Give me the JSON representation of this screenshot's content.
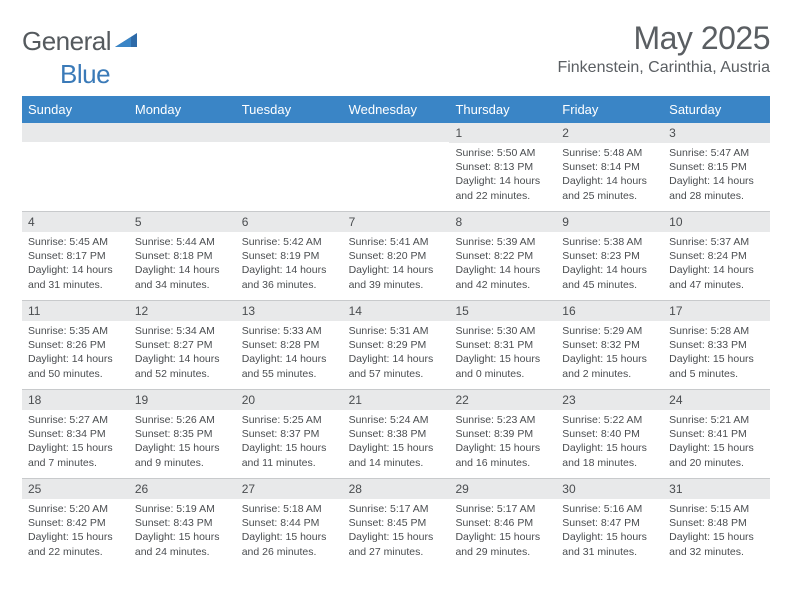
{
  "logo": {
    "part1": "General",
    "part2": "Blue"
  },
  "title": "May 2025",
  "location": "Finkenstein, Carinthia, Austria",
  "weekdays": [
    "Sunday",
    "Monday",
    "Tuesday",
    "Wednesday",
    "Thursday",
    "Friday",
    "Saturday"
  ],
  "colors": {
    "header_bg": "#3a85c6",
    "daynum_bg": "#e8e9ea",
    "text": "#4a4d50",
    "logo_gray": "#555a5e",
    "logo_blue": "#3a7ab8",
    "divider": "#c8cacc"
  },
  "weeks": [
    [
      {
        "n": "",
        "sunrise": "",
        "sunset": "",
        "daylight1": "",
        "daylight2": ""
      },
      {
        "n": "",
        "sunrise": "",
        "sunset": "",
        "daylight1": "",
        "daylight2": ""
      },
      {
        "n": "",
        "sunrise": "",
        "sunset": "",
        "daylight1": "",
        "daylight2": ""
      },
      {
        "n": "",
        "sunrise": "",
        "sunset": "",
        "daylight1": "",
        "daylight2": ""
      },
      {
        "n": "1",
        "sunrise": "Sunrise: 5:50 AM",
        "sunset": "Sunset: 8:13 PM",
        "daylight1": "Daylight: 14 hours",
        "daylight2": "and 22 minutes."
      },
      {
        "n": "2",
        "sunrise": "Sunrise: 5:48 AM",
        "sunset": "Sunset: 8:14 PM",
        "daylight1": "Daylight: 14 hours",
        "daylight2": "and 25 minutes."
      },
      {
        "n": "3",
        "sunrise": "Sunrise: 5:47 AM",
        "sunset": "Sunset: 8:15 PM",
        "daylight1": "Daylight: 14 hours",
        "daylight2": "and 28 minutes."
      }
    ],
    [
      {
        "n": "4",
        "sunrise": "Sunrise: 5:45 AM",
        "sunset": "Sunset: 8:17 PM",
        "daylight1": "Daylight: 14 hours",
        "daylight2": "and 31 minutes."
      },
      {
        "n": "5",
        "sunrise": "Sunrise: 5:44 AM",
        "sunset": "Sunset: 8:18 PM",
        "daylight1": "Daylight: 14 hours",
        "daylight2": "and 34 minutes."
      },
      {
        "n": "6",
        "sunrise": "Sunrise: 5:42 AM",
        "sunset": "Sunset: 8:19 PM",
        "daylight1": "Daylight: 14 hours",
        "daylight2": "and 36 minutes."
      },
      {
        "n": "7",
        "sunrise": "Sunrise: 5:41 AM",
        "sunset": "Sunset: 8:20 PM",
        "daylight1": "Daylight: 14 hours",
        "daylight2": "and 39 minutes."
      },
      {
        "n": "8",
        "sunrise": "Sunrise: 5:39 AM",
        "sunset": "Sunset: 8:22 PM",
        "daylight1": "Daylight: 14 hours",
        "daylight2": "and 42 minutes."
      },
      {
        "n": "9",
        "sunrise": "Sunrise: 5:38 AM",
        "sunset": "Sunset: 8:23 PM",
        "daylight1": "Daylight: 14 hours",
        "daylight2": "and 45 minutes."
      },
      {
        "n": "10",
        "sunrise": "Sunrise: 5:37 AM",
        "sunset": "Sunset: 8:24 PM",
        "daylight1": "Daylight: 14 hours",
        "daylight2": "and 47 minutes."
      }
    ],
    [
      {
        "n": "11",
        "sunrise": "Sunrise: 5:35 AM",
        "sunset": "Sunset: 8:26 PM",
        "daylight1": "Daylight: 14 hours",
        "daylight2": "and 50 minutes."
      },
      {
        "n": "12",
        "sunrise": "Sunrise: 5:34 AM",
        "sunset": "Sunset: 8:27 PM",
        "daylight1": "Daylight: 14 hours",
        "daylight2": "and 52 minutes."
      },
      {
        "n": "13",
        "sunrise": "Sunrise: 5:33 AM",
        "sunset": "Sunset: 8:28 PM",
        "daylight1": "Daylight: 14 hours",
        "daylight2": "and 55 minutes."
      },
      {
        "n": "14",
        "sunrise": "Sunrise: 5:31 AM",
        "sunset": "Sunset: 8:29 PM",
        "daylight1": "Daylight: 14 hours",
        "daylight2": "and 57 minutes."
      },
      {
        "n": "15",
        "sunrise": "Sunrise: 5:30 AM",
        "sunset": "Sunset: 8:31 PM",
        "daylight1": "Daylight: 15 hours",
        "daylight2": "and 0 minutes."
      },
      {
        "n": "16",
        "sunrise": "Sunrise: 5:29 AM",
        "sunset": "Sunset: 8:32 PM",
        "daylight1": "Daylight: 15 hours",
        "daylight2": "and 2 minutes."
      },
      {
        "n": "17",
        "sunrise": "Sunrise: 5:28 AM",
        "sunset": "Sunset: 8:33 PM",
        "daylight1": "Daylight: 15 hours",
        "daylight2": "and 5 minutes."
      }
    ],
    [
      {
        "n": "18",
        "sunrise": "Sunrise: 5:27 AM",
        "sunset": "Sunset: 8:34 PM",
        "daylight1": "Daylight: 15 hours",
        "daylight2": "and 7 minutes."
      },
      {
        "n": "19",
        "sunrise": "Sunrise: 5:26 AM",
        "sunset": "Sunset: 8:35 PM",
        "daylight1": "Daylight: 15 hours",
        "daylight2": "and 9 minutes."
      },
      {
        "n": "20",
        "sunrise": "Sunrise: 5:25 AM",
        "sunset": "Sunset: 8:37 PM",
        "daylight1": "Daylight: 15 hours",
        "daylight2": "and 11 minutes."
      },
      {
        "n": "21",
        "sunrise": "Sunrise: 5:24 AM",
        "sunset": "Sunset: 8:38 PM",
        "daylight1": "Daylight: 15 hours",
        "daylight2": "and 14 minutes."
      },
      {
        "n": "22",
        "sunrise": "Sunrise: 5:23 AM",
        "sunset": "Sunset: 8:39 PM",
        "daylight1": "Daylight: 15 hours",
        "daylight2": "and 16 minutes."
      },
      {
        "n": "23",
        "sunrise": "Sunrise: 5:22 AM",
        "sunset": "Sunset: 8:40 PM",
        "daylight1": "Daylight: 15 hours",
        "daylight2": "and 18 minutes."
      },
      {
        "n": "24",
        "sunrise": "Sunrise: 5:21 AM",
        "sunset": "Sunset: 8:41 PM",
        "daylight1": "Daylight: 15 hours",
        "daylight2": "and 20 minutes."
      }
    ],
    [
      {
        "n": "25",
        "sunrise": "Sunrise: 5:20 AM",
        "sunset": "Sunset: 8:42 PM",
        "daylight1": "Daylight: 15 hours",
        "daylight2": "and 22 minutes."
      },
      {
        "n": "26",
        "sunrise": "Sunrise: 5:19 AM",
        "sunset": "Sunset: 8:43 PM",
        "daylight1": "Daylight: 15 hours",
        "daylight2": "and 24 minutes."
      },
      {
        "n": "27",
        "sunrise": "Sunrise: 5:18 AM",
        "sunset": "Sunset: 8:44 PM",
        "daylight1": "Daylight: 15 hours",
        "daylight2": "and 26 minutes."
      },
      {
        "n": "28",
        "sunrise": "Sunrise: 5:17 AM",
        "sunset": "Sunset: 8:45 PM",
        "daylight1": "Daylight: 15 hours",
        "daylight2": "and 27 minutes."
      },
      {
        "n": "29",
        "sunrise": "Sunrise: 5:17 AM",
        "sunset": "Sunset: 8:46 PM",
        "daylight1": "Daylight: 15 hours",
        "daylight2": "and 29 minutes."
      },
      {
        "n": "30",
        "sunrise": "Sunrise: 5:16 AM",
        "sunset": "Sunset: 8:47 PM",
        "daylight1": "Daylight: 15 hours",
        "daylight2": "and 31 minutes."
      },
      {
        "n": "31",
        "sunrise": "Sunrise: 5:15 AM",
        "sunset": "Sunset: 8:48 PM",
        "daylight1": "Daylight: 15 hours",
        "daylight2": "and 32 minutes."
      }
    ]
  ]
}
